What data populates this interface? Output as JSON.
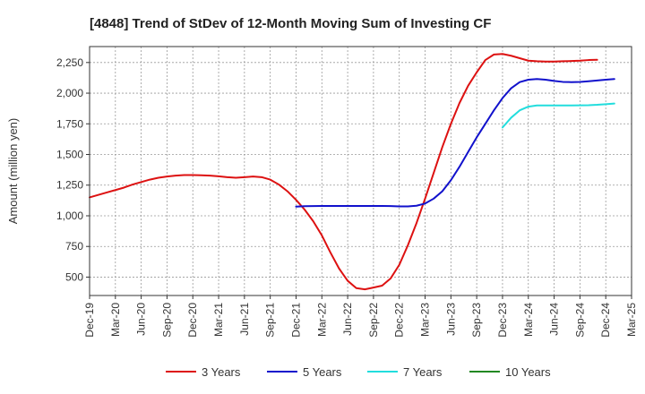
{
  "chart_data": {
    "type": "line",
    "title": "[4848]  Trend of StDev of 12-Month Moving Sum of Investing CF",
    "ylabel": "Amount (million yen)",
    "xlabel": "",
    "ylim": [
      350,
      2380
    ],
    "yticks": [
      500,
      750,
      1000,
      1250,
      1500,
      1750,
      2000,
      2250
    ],
    "ytick_labels": [
      "500",
      "750",
      "1,000",
      "1,250",
      "1,500",
      "1,750",
      "2,000",
      "2,250"
    ],
    "xticks": [
      "Dec-19",
      "Mar-20",
      "Jun-20",
      "Sep-20",
      "Dec-20",
      "Mar-21",
      "Jun-21",
      "Sep-21",
      "Dec-21",
      "Mar-22",
      "Jun-22",
      "Sep-22",
      "Dec-22",
      "Mar-23",
      "Jun-23",
      "Sep-23",
      "Dec-23",
      "Mar-24",
      "Jun-24",
      "Sep-24",
      "Dec-24",
      "Mar-25"
    ],
    "grid": true,
    "legend_position": "bottom",
    "series": [
      {
        "name": "3 Years",
        "color": "#dd1111",
        "start_month": 0,
        "values": [
          1150,
          1170,
          1190,
          1210,
          1230,
          1255,
          1275,
          1295,
          1310,
          1320,
          1328,
          1332,
          1332,
          1330,
          1328,
          1322,
          1315,
          1310,
          1315,
          1320,
          1315,
          1295,
          1255,
          1200,
          1130,
          1050,
          955,
          840,
          700,
          570,
          470,
          410,
          400,
          415,
          430,
          490,
          600,
          760,
          940,
          1140,
          1350,
          1560,
          1750,
          1920,
          2060,
          2170,
          2270,
          2315,
          2320,
          2305,
          2285,
          2265,
          2260,
          2258,
          2258,
          2260,
          2262,
          2265,
          2270,
          2272
        ]
      },
      {
        "name": "5 Years",
        "color": "#1111cc",
        "start_month": 24,
        "values": [
          1075,
          1078,
          1079,
          1080,
          1080,
          1080,
          1080,
          1080,
          1080,
          1080,
          1080,
          1079,
          1077,
          1077,
          1082,
          1100,
          1140,
          1200,
          1290,
          1400,
          1520,
          1640,
          1750,
          1860,
          1960,
          2040,
          2090,
          2110,
          2115,
          2110,
          2100,
          2092,
          2090,
          2092,
          2097,
          2103,
          2110,
          2115
        ]
      },
      {
        "name": "7 Years",
        "color": "#22dddd",
        "start_month": 48,
        "values": [
          1720,
          1800,
          1860,
          1890,
          1900,
          1900,
          1900,
          1900,
          1900,
          1901,
          1902,
          1905,
          1910,
          1915
        ]
      },
      {
        "name": "10 Years",
        "color": "#228822",
        "start_month": 0,
        "values": []
      }
    ]
  }
}
